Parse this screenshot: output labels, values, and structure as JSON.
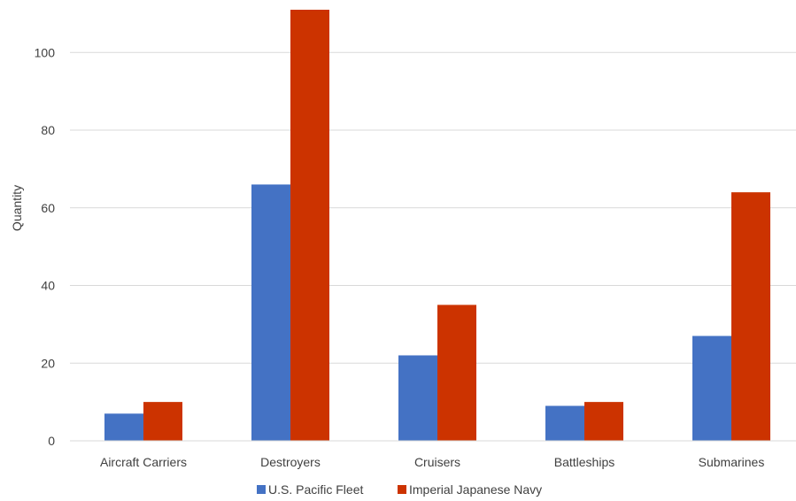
{
  "chart_data": {
    "type": "bar",
    "title": "",
    "xlabel": "",
    "ylabel": "Quantity",
    "categories": [
      "Aircraft Carriers",
      "Destroyers",
      "Cruisers",
      "Battleships",
      "Submarines"
    ],
    "series": [
      {
        "name": "U.S. Pacific Fleet",
        "values": [
          7,
          66,
          22,
          9,
          27
        ],
        "color": "#4472C4"
      },
      {
        "name": "Imperial Japanese Navy",
        "values": [
          10,
          111,
          35,
          10,
          64
        ],
        "color": "#CC3300"
      }
    ],
    "ylim": [
      0,
      111
    ],
    "yticks": [
      0,
      20,
      40,
      60,
      80,
      100
    ],
    "grid": true,
    "legend_position": "bottom"
  }
}
